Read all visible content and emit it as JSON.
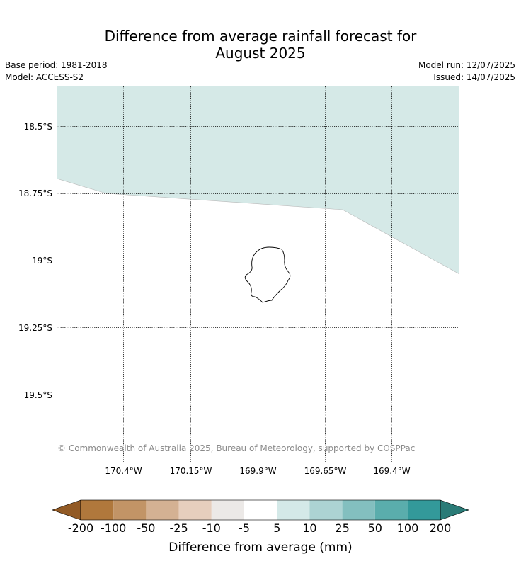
{
  "title": {
    "line1": "Difference from average rainfall forecast for",
    "line2": "August 2025"
  },
  "meta": {
    "base_period": "Base period: 1981-2018",
    "model": "Model: ACCESS-S2",
    "model_run": "Model run: 12/07/2025",
    "issued": "Issued: 14/07/2025"
  },
  "map": {
    "lat_labels": [
      "18.5°S",
      "18.75°S",
      "19°S",
      "19.25°S",
      "19.5°S"
    ],
    "lon_labels": [
      "170.4°W",
      "170.15°W",
      "169.9°W",
      "169.65°W",
      "169.4°W"
    ],
    "shaded_class_color": "#d5e9e7",
    "coastline_color": "#000000",
    "gridlines": "dotted"
  },
  "copyright": "© Commonwealth of Australia 2025, Bureau of Meteorology, supported by COSPPac",
  "colorbar": {
    "label": "Difference from average (mm)",
    "ticks": [
      "-200",
      "-100",
      "-50",
      "-25",
      "-10",
      "-5",
      "5",
      "10",
      "25",
      "50",
      "100",
      "200"
    ],
    "under_color": "#925a25",
    "over_color": "#2a7b77",
    "colors": [
      "#b0783c",
      "#c29466",
      "#d4b193",
      "#e6cebd",
      "#ece9e7",
      "#ffffff",
      "#d4e9e8",
      "#acd3d3",
      "#83bfbf",
      "#5aadac",
      "#33999a"
    ]
  }
}
